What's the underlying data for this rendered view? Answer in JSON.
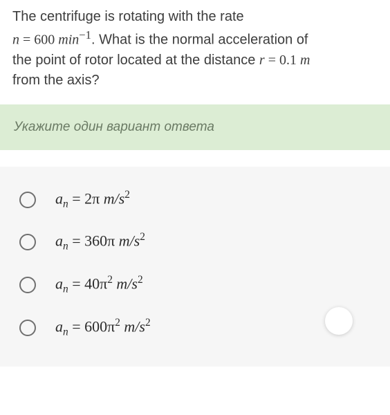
{
  "question": {
    "line1_pre": "The centrifuge is rotating with the rate",
    "line2_var": "n",
    "line2_eq": " = 600 ",
    "line2_unit": "min",
    "line2_exp": "−1",
    "line2_post": ". What is the normal acceleration of",
    "line3_pre": "the point of rotor located at the distance ",
    "line3_var": "r",
    "line3_eq": " = 0.1 ",
    "line3_unit": "m",
    "line4": " from the axis?",
    "text_color": "#3c3c3c",
    "font_size": 20
  },
  "instruction": {
    "text": "Укажите один вариант ответа",
    "bg_color": "#dcedd4",
    "text_color": "#6a7a64",
    "font_size": 19
  },
  "options_area": {
    "bg_color": "#f6f6f6",
    "radio_border": "#6f6f6f",
    "font_size": 22
  },
  "options": [
    {
      "var": "a",
      "sub": "n",
      "rhs_num": " = 2π ",
      "unit": "m/s",
      "exp": "2"
    },
    {
      "var": "a",
      "sub": "n",
      "rhs_num": " = 360π ",
      "unit": "m/s",
      "exp": "2"
    },
    {
      "var": "a",
      "sub": "n",
      "rhs_num": " = 40π",
      "mid_exp": "2",
      "sp": " ",
      "unit": "m/s",
      "exp": "2"
    },
    {
      "var": "a",
      "sub": "n",
      "rhs_num": " = 600π",
      "mid_exp": "2",
      "sp": " ",
      "unit": "m/s",
      "exp": "2"
    }
  ]
}
